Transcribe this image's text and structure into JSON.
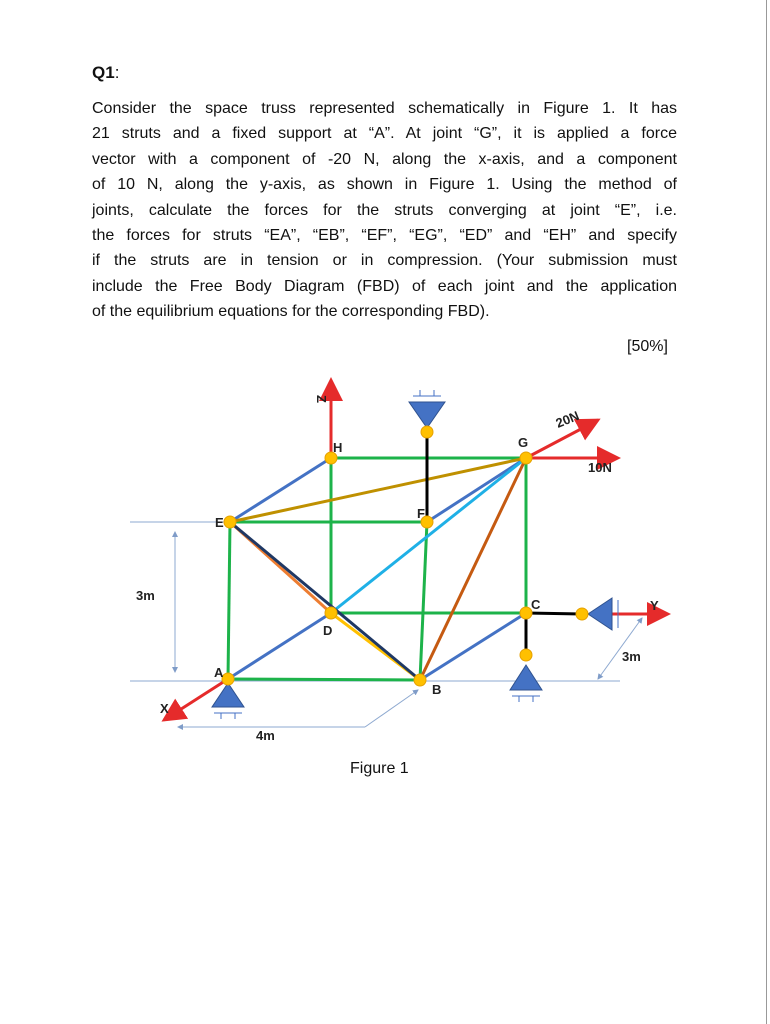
{
  "heading": {
    "label": "Q1",
    "suffix": ":"
  },
  "paragraph_lines": [
    "Consider the space truss represented schematically in Figure 1. It has",
    "21 struts and a fixed support at “A”. At joint “G”, it is applied a force",
    "vector with a component of -20 N, along the x-axis, and a component",
    "of 10 N, along the y-axis, as shown in Figure 1. Using the method of",
    "joints, calculate the forces for the struts converging at joint “E”, i.e.",
    "the forces for struts “EA”, “EB”, “EF”, “EG”, “ED” and “EH” and specify",
    "if the struts are in tension or in compression. (Your submission must",
    "include the Free Body Diagram (FBD) of each joint and the application",
    "of the equilibrium equations for the corresponding FBD)."
  ],
  "weight": "[50%]",
  "figure": {
    "labels": {
      "z": "Z",
      "h": "H",
      "g": "G",
      "force_x": "20N",
      "force_y": "10N",
      "e": "E",
      "f": "F",
      "height": "3m",
      "c": "C",
      "y": "Y",
      "d": "D",
      "depth": "3m",
      "a": "A",
      "b": "B",
      "x": "X",
      "width": "4m"
    },
    "caption": "Figure 1"
  }
}
